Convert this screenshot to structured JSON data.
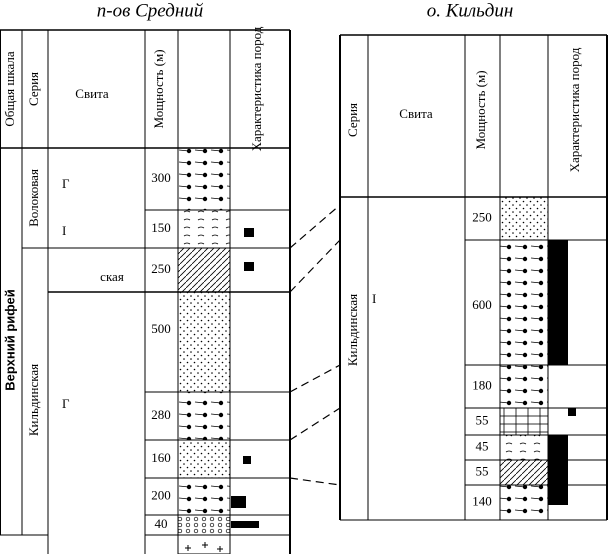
{
  "left": {
    "title": "п-ов Средний",
    "headers": [
      "Общая шкала",
      "Серия",
      "Свита",
      "Мощность (м)",
      "Характеристика пород"
    ],
    "general_scale": "Верхний рифей",
    "series": [
      "Волоковая",
      "Кильдинская"
    ],
    "formation_fragments": [
      "Г",
      "І",
      "ская",
      "Г"
    ],
    "thickness": [
      300,
      150,
      250,
      500,
      280,
      160,
      200,
      40
    ]
  },
  "right": {
    "title": "о. Кильдин",
    "headers": [
      "Серия",
      "Свита",
      "Мощность (м)",
      "Характеристика пород"
    ],
    "series": [
      "Кильдинская"
    ],
    "formation_fragments": [
      "І"
    ],
    "thickness": [
      250,
      600,
      180,
      55,
      45,
      55,
      140
    ]
  }
}
